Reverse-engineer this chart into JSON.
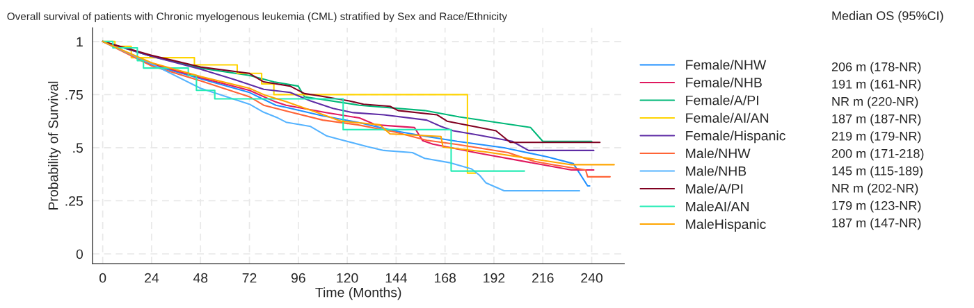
{
  "chart_data": {
    "type": "step",
    "title": "Overall survival of patients with Chronic myelogenous leukemia (CML) stratified by Sex and Race/Ethnicity",
    "xlabel": "Time (Months)",
    "ylabel": "Probability of Survival",
    "xlim": [
      -5,
      256
    ],
    "ylim": [
      -0.046,
      1.065
    ],
    "xticks": [
      0,
      24,
      48,
      72,
      96,
      120,
      144,
      168,
      192,
      216,
      240
    ],
    "yticks": [
      {
        "value": 0,
        "label": "0"
      },
      {
        "value": 0.25,
        "label": ".25"
      },
      {
        "value": 0.5,
        "label": ".5"
      },
      {
        "value": 0.75,
        "label": ".75"
      },
      {
        "value": 1,
        "label": "1"
      }
    ],
    "grid": true,
    "legend": "right",
    "line_style": "solid",
    "annotations": [
      "Median OS (95%CI)",
      "206 m (178-NR)",
      "191 m (161-NR)",
      "NR m (220-NR)",
      "187 m (187-NR)",
      "219 m (179-NR)",
      "200 m (171-218)",
      "145 m (115-189)",
      "NR m (202-NR)",
      "179 m (123-NR)",
      "187 m (147-NR)"
    ],
    "series": [
      {
        "name": "Female/NHW",
        "type": "line",
        "color": "#1f8fff",
        "x": [
          0,
          24,
          48,
          72,
          85,
          90,
          108,
          125,
          143,
          159,
          174,
          197,
          218,
          231,
          238,
          239
        ],
        "values": [
          1,
          0.89,
          0.825,
          0.76,
          0.7,
          0.69,
          0.65,
          0.62,
          0.58,
          0.553,
          0.53,
          0.5,
          0.457,
          0.425,
          0.32,
          0.32
        ]
      },
      {
        "name": "Female/NHB",
        "type": "line",
        "color": "#e0195f",
        "x": [
          0,
          24,
          48,
          72,
          85,
          90,
          110,
          126,
          134,
          153,
          157,
          162,
          183,
          230,
          241
        ],
        "values": [
          1,
          0.895,
          0.83,
          0.77,
          0.715,
          0.7,
          0.665,
          0.64,
          0.608,
          0.595,
          0.533,
          0.517,
          0.477,
          0.395,
          0.395
        ]
      },
      {
        "name": "Female/A/PI",
        "type": "line",
        "color": "#00b878",
        "x": [
          0,
          24,
          48,
          72,
          84,
          96,
          99,
          126,
          158,
          175,
          210,
          216,
          240
        ],
        "values": [
          1,
          0.93,
          0.875,
          0.84,
          0.81,
          0.79,
          0.74,
          0.7,
          0.675,
          0.645,
          0.595,
          0.53,
          0.53
        ]
      },
      {
        "name": "Female/AI/AN",
        "color": "#ffd400",
        "x": [
          0,
          6,
          14,
          45,
          66,
          78,
          84,
          179,
          183
        ],
        "values": [
          1,
          0.977,
          0.924,
          0.89,
          0.85,
          0.8,
          0.75,
          0.38,
          0.38
        ]
      },
      {
        "name": "Female/Hispanic",
        "type": "line",
        "color": "#5e2ca5",
        "x": [
          0,
          24,
          48,
          65,
          79,
          92,
          102,
          113,
          123,
          138,
          159,
          166,
          172,
          184,
          201,
          209,
          241
        ],
        "values": [
          1,
          0.93,
          0.87,
          0.82,
          0.775,
          0.76,
          0.72,
          0.685,
          0.665,
          0.655,
          0.63,
          0.6,
          0.58,
          0.56,
          0.53,
          0.487,
          0.487
        ]
      },
      {
        "name": "Male/NHW",
        "type": "line",
        "color": "#ff6437",
        "x": [
          0,
          24,
          48,
          72,
          79,
          90,
          108,
          125,
          143,
          159,
          174,
          199,
          212,
          221,
          237,
          238,
          249
        ],
        "values": [
          1,
          0.885,
          0.815,
          0.74,
          0.7,
          0.673,
          0.63,
          0.608,
          0.575,
          0.535,
          0.515,
          0.477,
          0.435,
          0.42,
          0.395,
          0.363,
          0.363
        ]
      },
      {
        "name": "Male/NHB",
        "type": "line",
        "color": "#55b3ff",
        "x": [
          0,
          24,
          48,
          72,
          79,
          86,
          90,
          102,
          110,
          116,
          130,
          138,
          152,
          158,
          170,
          181,
          185,
          188,
          197,
          234
        ],
        "values": [
          1,
          0.895,
          0.78,
          0.705,
          0.667,
          0.64,
          0.62,
          0.6,
          0.555,
          0.54,
          0.505,
          0.487,
          0.477,
          0.45,
          0.43,
          0.4,
          0.37,
          0.335,
          0.297,
          0.297
        ]
      },
      {
        "name": "Male/A/PI",
        "type": "line",
        "color": "#800020",
        "x": [
          0,
          24,
          48,
          72,
          79,
          92,
          99,
          106,
          121,
          128,
          141,
          145,
          164,
          169,
          193,
          200,
          244
        ],
        "values": [
          1,
          0.935,
          0.88,
          0.85,
          0.81,
          0.79,
          0.755,
          0.745,
          0.72,
          0.705,
          0.695,
          0.675,
          0.655,
          0.625,
          0.58,
          0.525,
          0.525
        ]
      },
      {
        "name": "MaleAI/AN",
        "color": "#25ecb5",
        "x": [
          0,
          5,
          17,
          20,
          42,
          46,
          55,
          118,
          171,
          207
        ],
        "values": [
          1,
          0.97,
          0.91,
          0.875,
          0.84,
          0.77,
          0.73,
          0.585,
          0.39,
          0.39
        ]
      },
      {
        "name": "MaleHispanic",
        "type": "line",
        "color": "#ffa500",
        "x": [
          0,
          24,
          48,
          72,
          79,
          90,
          106,
          117,
          136,
          141,
          166,
          167,
          188,
          230,
          251
        ],
        "values": [
          1,
          0.9,
          0.835,
          0.78,
          0.75,
          0.717,
          0.663,
          0.625,
          0.608,
          0.565,
          0.553,
          0.503,
          0.48,
          0.42,
          0.42
        ]
      }
    ]
  }
}
